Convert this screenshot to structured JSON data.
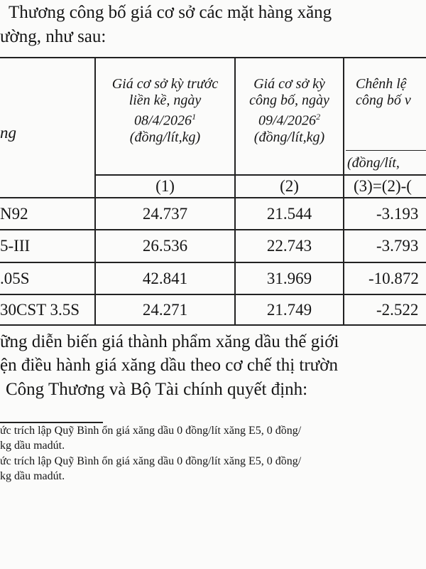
{
  "intro": {
    "line1": "Thương công bố giá cơ sở các mặt hàng xăng",
    "line2": "ường, như sau:"
  },
  "table": {
    "headers": {
      "product": "ng",
      "col1": [
        "Giá cơ sở kỳ trước",
        "liền kề, ngày",
        "08/4/2026",
        "(đồng/lít,kg)"
      ],
      "col1_sup": "1",
      "col2": [
        "Giá cơ sở kỳ",
        "công bố, ngày",
        "09/4/2026",
        "(đồng/lít,kg)"
      ],
      "col2_sup": "2",
      "col3": [
        "Chênh lệ",
        "công bố v"
      ],
      "col3_unit": "(đồng/lít,"
    },
    "index_row": [
      "(1)",
      "(2)",
      "(3)=(2)-("
    ],
    "rows": [
      {
        "product": "N92",
        "prev": "24.737",
        "curr": "21.544",
        "diff": "-3.193"
      },
      {
        "product": "5-III",
        "prev": "26.536",
        "curr": "22.743",
        "diff": "-3.793"
      },
      {
        "product": ".05S",
        "prev": "42.841",
        "curr": "31.969",
        "diff": "-10.872"
      },
      {
        "product": "30CST 3.5S",
        "prev": "24.271",
        "curr": "21.749",
        "diff": "-2.522"
      }
    ]
  },
  "paragraph": [
    "ững diễn biến giá thành phẩm xăng dầu thế giới",
    "ện điều hành giá xăng dầu theo cơ chế thị trườn",
    "Công Thương và Bộ Tài chính quyết định:"
  ],
  "footnotes": [
    "ức trích lập Quỹ Bình ổn giá xăng dầu 0 đồng/lít xăng E5, 0 đồng/",
    "kg dầu madút.",
    "ức trích lập Quỹ Bình ổn giá xăng dầu 0 đồng/lít xăng E5, 0 đồng/",
    "kg dầu madút."
  ]
}
